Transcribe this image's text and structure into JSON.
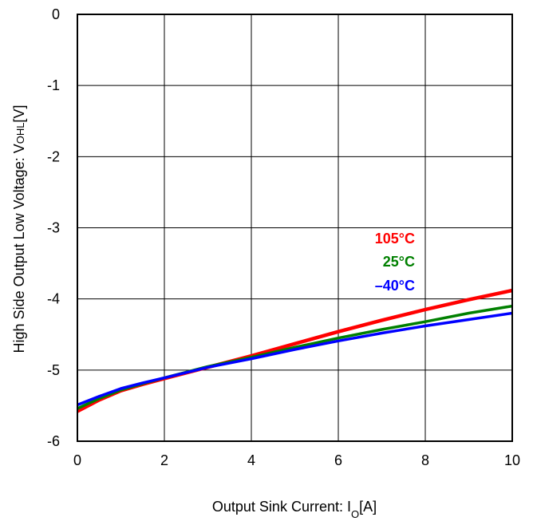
{
  "chart_data": {
    "type": "line",
    "title": "",
    "xlabel": {
      "main": "Output Sink Current: I",
      "sub": "O",
      "unit": "[A]"
    },
    "ylabel": {
      "main": "High Side Output Low Voltage: V",
      "sub": "OHL",
      "unit": "[V]"
    },
    "xlim": [
      0,
      10
    ],
    "ylim": [
      -6,
      0
    ],
    "xticks": [
      0,
      2,
      4,
      6,
      8,
      10
    ],
    "yticks": [
      0,
      -1,
      -2,
      -3,
      -4,
      -5,
      -6
    ],
    "grid": true,
    "legend": "inline labels, right side above the curves",
    "series": [
      {
        "name": "105°C",
        "color": "#ff0000",
        "x": [
          0,
          0.5,
          1,
          1.5,
          2,
          3,
          4,
          5,
          6,
          7,
          8,
          9,
          10
        ],
        "y": [
          -5.58,
          -5.42,
          -5.29,
          -5.2,
          -5.12,
          -4.96,
          -4.8,
          -4.63,
          -4.46,
          -4.3,
          -4.15,
          -4.01,
          -3.88
        ]
      },
      {
        "name": "25°C",
        "color": "#008000",
        "x": [
          0,
          0.5,
          1,
          1.5,
          2,
          3,
          4,
          5,
          6,
          7,
          8,
          9,
          10
        ],
        "y": [
          -5.54,
          -5.4,
          -5.28,
          -5.19,
          -5.11,
          -4.95,
          -4.82,
          -4.68,
          -4.55,
          -4.43,
          -4.32,
          -4.2,
          -4.1
        ]
      },
      {
        "name": "–40°C",
        "color": "#0000ff",
        "x": [
          0,
          0.5,
          1,
          1.5,
          2,
          3,
          4,
          5,
          6,
          7,
          8,
          9,
          10
        ],
        "y": [
          -5.49,
          -5.37,
          -5.26,
          -5.18,
          -5.11,
          -4.96,
          -4.84,
          -4.71,
          -4.59,
          -4.48,
          -4.38,
          -4.29,
          -4.2
        ]
      }
    ]
  }
}
